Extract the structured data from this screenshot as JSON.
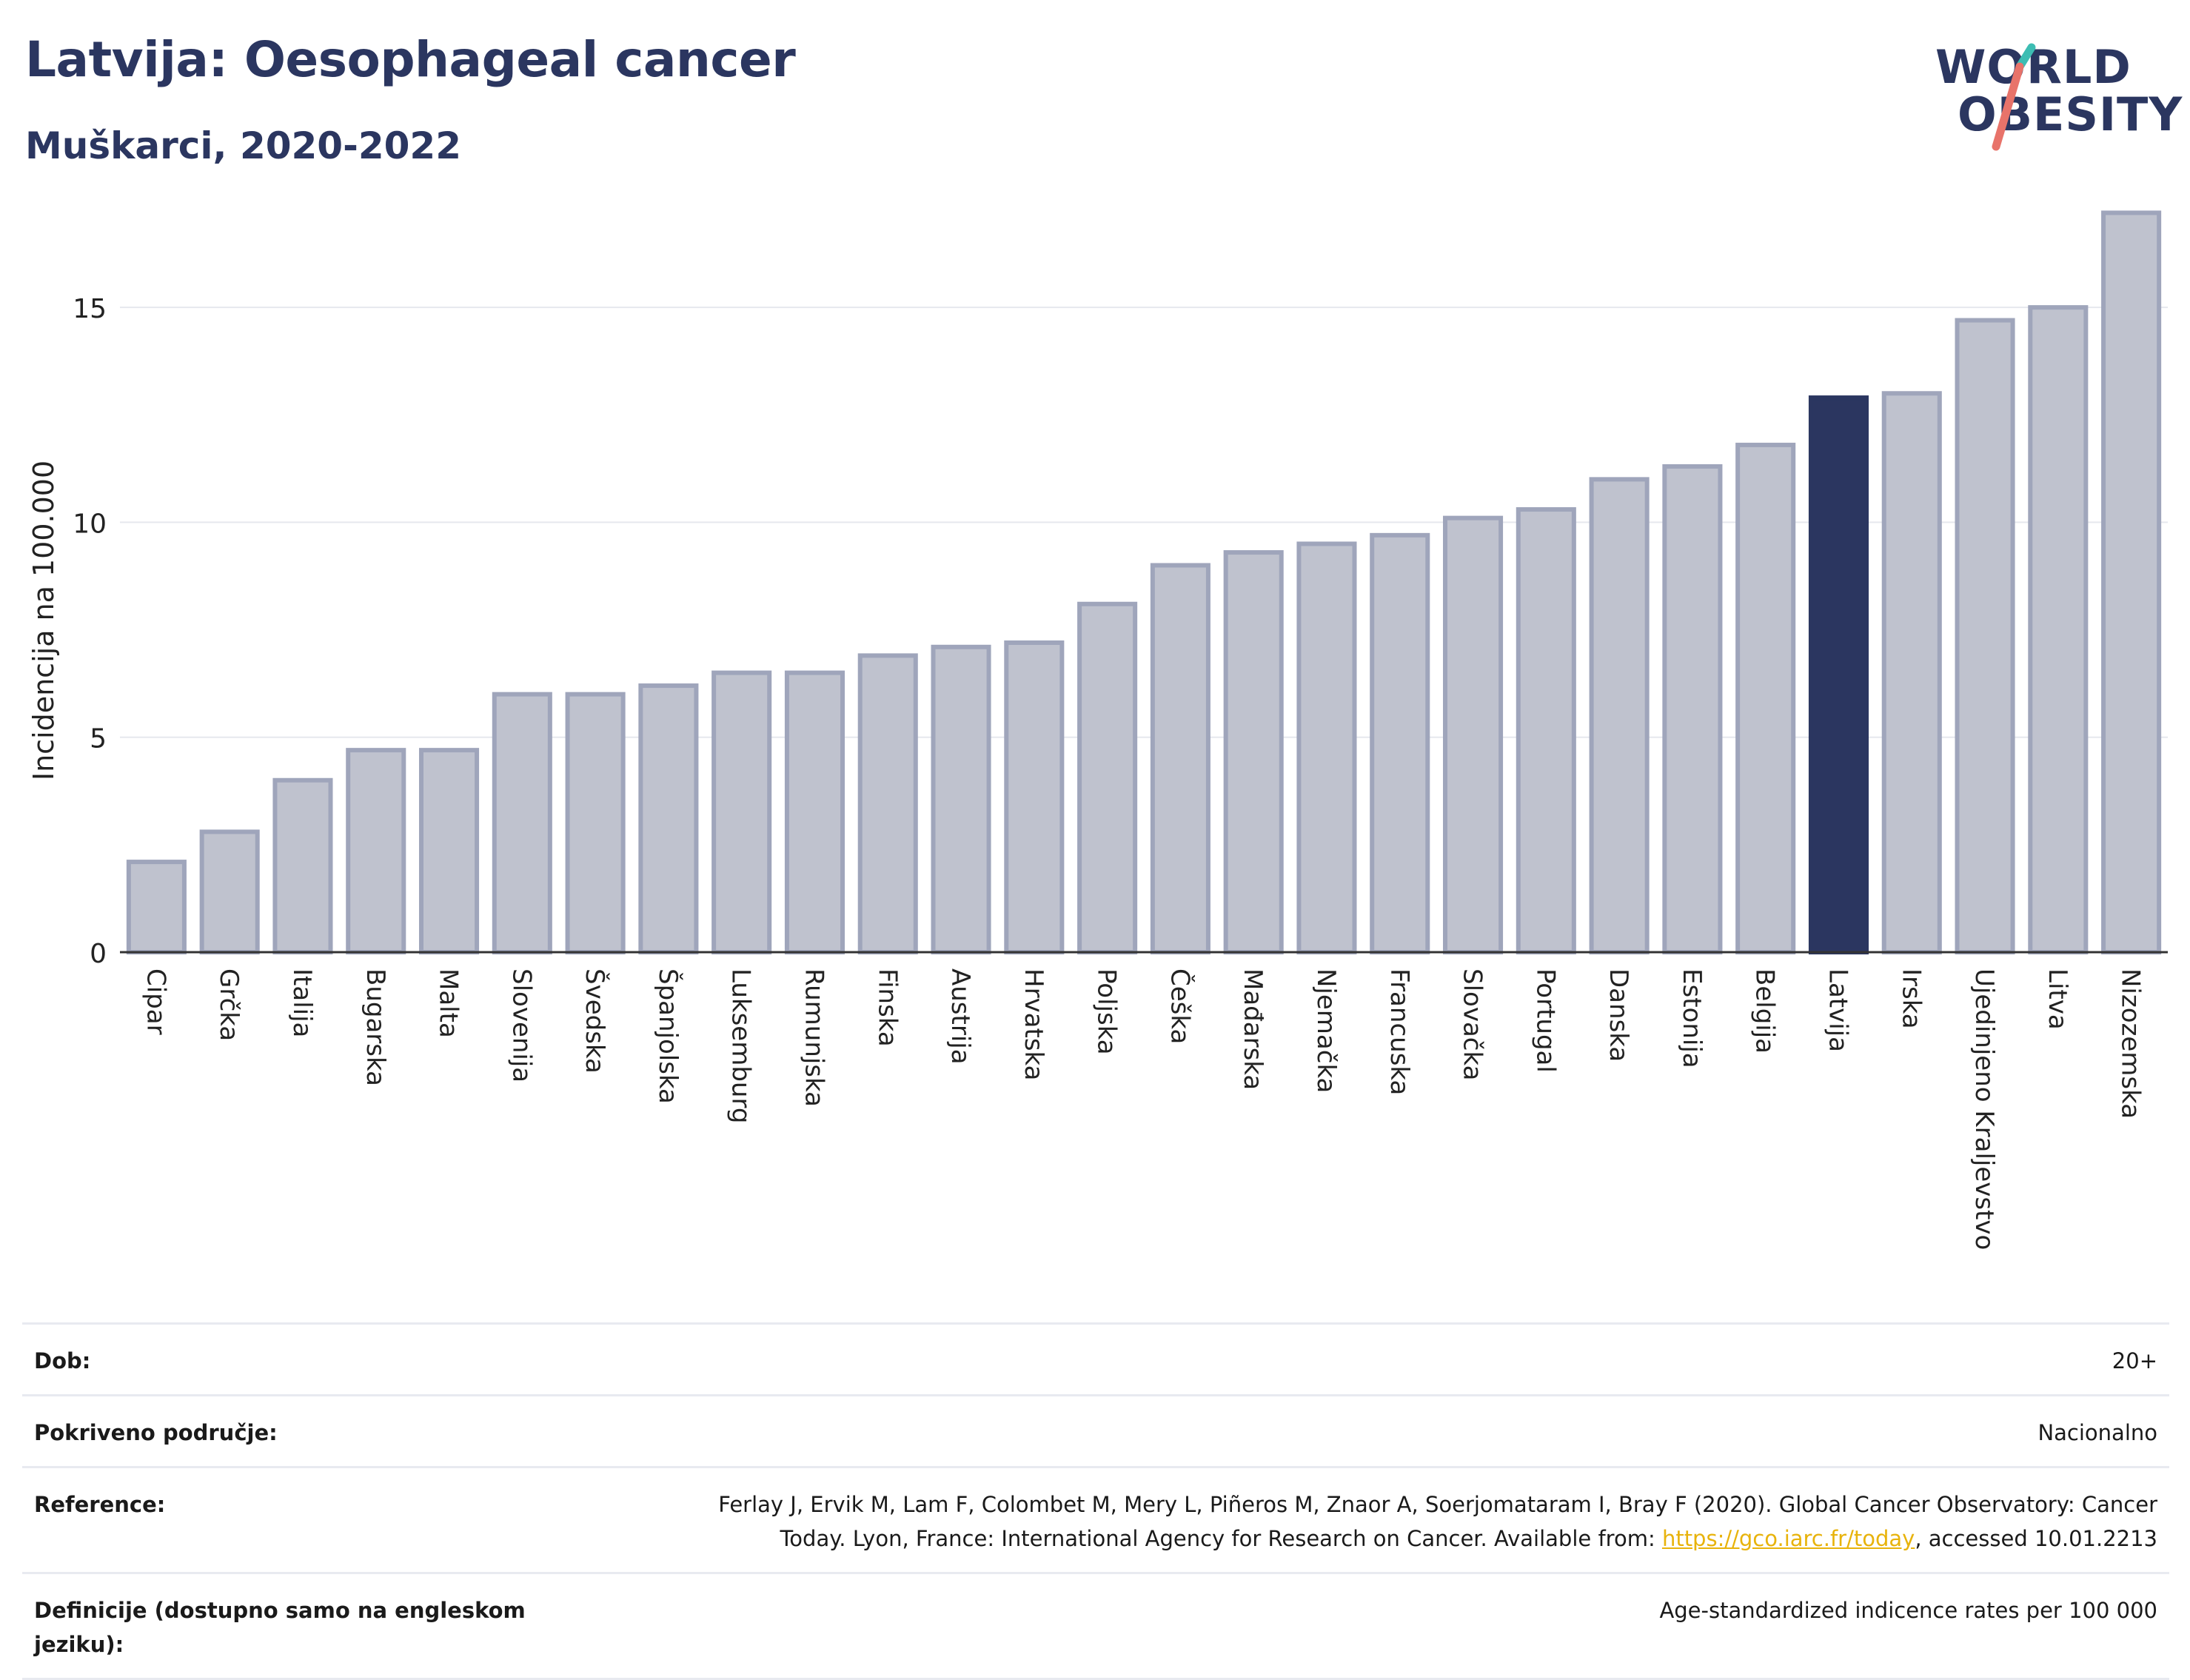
{
  "header": {
    "title": "Latvija: Oesophageal cancer",
    "subtitle": "Muškarci, 2020-2022"
  },
  "logo": {
    "line1": "WORLD",
    "line2": "OBESITY",
    "colors": {
      "text": "#2b3660",
      "slash_teal": "#3dbdb3",
      "slash_coral": "#e8736a"
    }
  },
  "chart_data": {
    "type": "bar",
    "ylabel": "Incidencija na 100.000",
    "xlabel": "",
    "ylim": [
      0,
      17.5
    ],
    "yticks": [
      0,
      5,
      10,
      15
    ],
    "grid": true,
    "highlight": "Latvija",
    "colors": {
      "bar": "#bfc2ce",
      "bar_border": "#9fa5bb",
      "highlight": "#2b3660"
    },
    "categories": [
      "Cipar",
      "Grčka",
      "Italija",
      "Bugarska",
      "Malta",
      "Slovenija",
      "Švedska",
      "Španjolska",
      "Luksemburg",
      "Rumunjska",
      "Finska",
      "Austrija",
      "Hrvatska",
      "Poljska",
      "Češka",
      "Mađarska",
      "Njemačka",
      "Francuska",
      "Slovačka",
      "Portugal",
      "Danska",
      "Estonija",
      "Belgija",
      "Latvija",
      "Irska",
      "Ujedinjeno Kraljevstvo",
      "Litva",
      "Nizozemska"
    ],
    "values": [
      2.1,
      2.8,
      4.0,
      4.7,
      4.7,
      6.0,
      6.0,
      6.2,
      6.5,
      6.5,
      6.9,
      7.1,
      7.2,
      8.1,
      9.0,
      9.3,
      9.5,
      9.7,
      10.1,
      10.3,
      11.0,
      11.3,
      11.8,
      12.9,
      13.0,
      14.7,
      15.0,
      17.2
    ]
  },
  "info": {
    "age_label": "Dob:",
    "age_value": "20+",
    "coverage_label": "Pokriveno područje:",
    "coverage_value": "Nacionalno",
    "reference_label": "Reference:",
    "reference_line1": "Ferlay J, Ervik M, Lam F, Colombet M, Mery L, Piñeros M, Znaor A, Soerjomataram I, Bray F (2020). Global Cancer Observatory: Cancer",
    "reference_line2_pre": "Today. Lyon, France: International Agency for Research on Cancer. Available from: ",
    "reference_link": "https://gco.iarc.fr/today",
    "reference_line2_post": ", accessed 10.01.2213",
    "definition_label": "Definicije (dostupno samo na engleskom jeziku):",
    "definition_value": "Age-standardized indicence rates per 100 000"
  }
}
